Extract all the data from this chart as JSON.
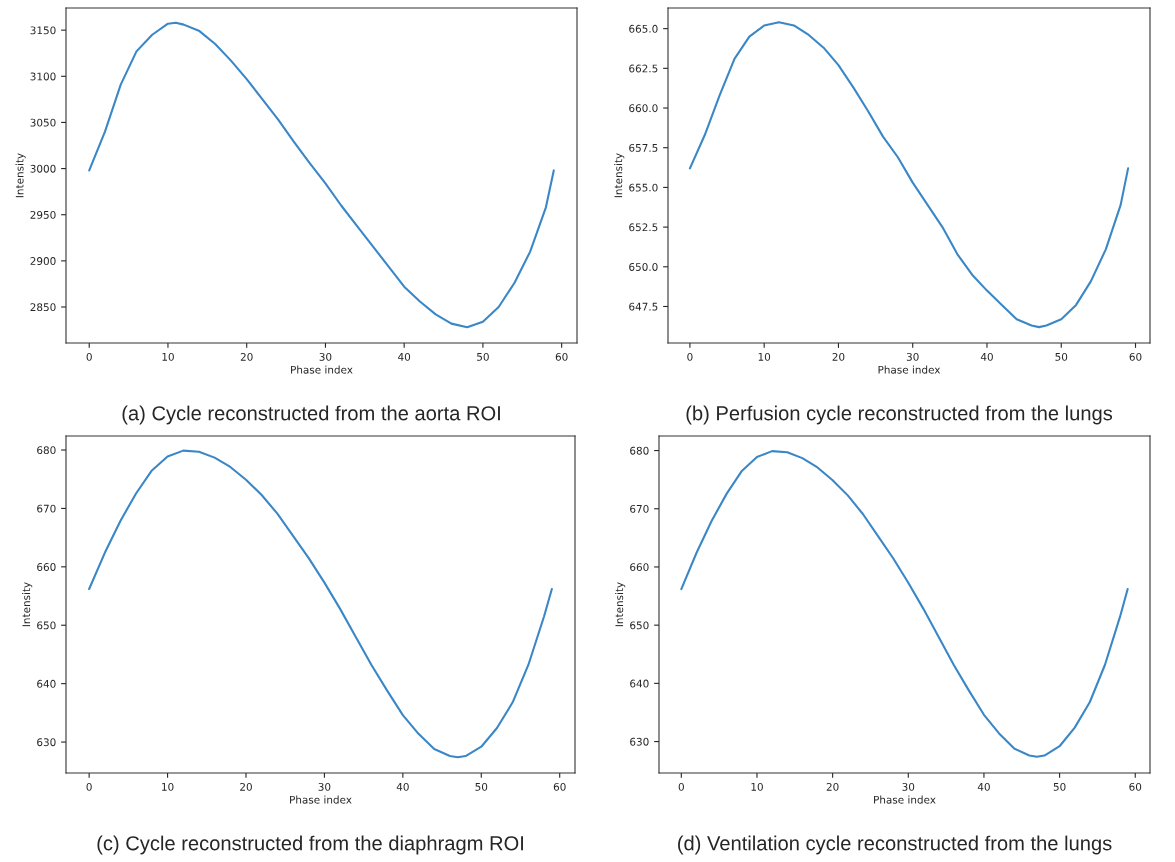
{
  "chart_data": [
    {
      "type": "line",
      "title": "(a) Cycle reconstructed from the aorta ROI",
      "xlabel": "Phase index",
      "ylabel": "Intensity",
      "xlim": [
        -2.95,
        61.95
      ],
      "ylim": [
        2811,
        3174
      ],
      "xticks": [
        0,
        10,
        20,
        30,
        40,
        50,
        60
      ],
      "yticks": [
        2850,
        2900,
        2950,
        3000,
        3050,
        3100,
        3150
      ],
      "grid": false,
      "legend": false,
      "series": [
        {
          "color": "#3a87c7",
          "x": [
            0,
            2,
            4,
            6,
            8,
            10,
            11,
            12,
            14,
            16,
            18,
            20,
            22,
            24,
            26,
            28,
            30,
            32,
            34,
            36,
            38,
            40,
            42,
            44,
            46,
            48,
            50,
            52,
            54,
            56,
            58,
            59
          ],
          "values": [
            2998,
            3040,
            3091,
            3127,
            3145,
            3157,
            3158,
            3156,
            3149,
            3135,
            3117,
            3097,
            3075,
            3053,
            3029,
            3006,
            2984,
            2960,
            2938,
            2916,
            2894,
            2872,
            2856,
            2842,
            2832,
            2828,
            2834,
            2850,
            2876,
            2910,
            2958,
            2998
          ]
        }
      ]
    },
    {
      "type": "line",
      "title": "(b) Perfusion cycle reconstructed from the lungs",
      "xlabel": "Phase index",
      "ylabel": "Intensity",
      "xlim": [
        -2.95,
        61.95
      ],
      "ylim": [
        645.2,
        666.3
      ],
      "xticks": [
        0,
        10,
        20,
        30,
        40,
        50,
        60
      ],
      "yticks": [
        {
          "value": 647.5,
          "label": "647.5"
        },
        {
          "value": 650,
          "label": "650.0"
        },
        {
          "value": 652.5,
          "label": "652.5"
        },
        {
          "value": 655,
          "label": "655.0"
        },
        {
          "value": 657.5,
          "label": "657.5"
        },
        {
          "value": 660,
          "label": "660.0"
        },
        {
          "value": 662.5,
          "label": "662.5"
        },
        {
          "value": 665,
          "label": "665.0"
        }
      ],
      "grid": false,
      "legend": false,
      "series": [
        {
          "color": "#3a87c7",
          "x": [
            0,
            2,
            4,
            6,
            8,
            10,
            12,
            14,
            16,
            18,
            20,
            22,
            24,
            26,
            28,
            30,
            32,
            34,
            36,
            38,
            40,
            42,
            44,
            46,
            47,
            48,
            50,
            52,
            54,
            56,
            58,
            59
          ],
          "values": [
            656.2,
            658.3,
            660.8,
            663.1,
            664.5,
            665.2,
            665.4,
            665.2,
            664.6,
            663.8,
            662.7,
            661.3,
            659.8,
            658.2,
            656.9,
            655.3,
            653.9,
            652.5,
            650.8,
            649.5,
            648.5,
            647.6,
            646.7,
            646.3,
            646.2,
            646.3,
            646.7,
            647.6,
            649.1,
            651.1,
            653.9,
            656.2
          ]
        }
      ]
    },
    {
      "type": "line",
      "title": "(c) Cycle reconstructed from the diaphragm ROI",
      "xlabel": "Phase index",
      "ylabel": "Intensity",
      "xlim": [
        -2.95,
        61.95
      ],
      "ylim": [
        624.7,
        682.4
      ],
      "xticks": [
        0,
        10,
        20,
        30,
        40,
        50,
        60
      ],
      "yticks": [
        630,
        640,
        650,
        660,
        670,
        680
      ],
      "grid": false,
      "legend": false,
      "series": [
        {
          "color": "#3a87c7",
          "x": [
            0,
            2,
            4,
            6,
            8,
            10,
            12,
            14,
            16,
            18,
            20,
            22,
            24,
            26,
            28,
            30,
            32,
            34,
            36,
            38,
            40,
            42,
            44,
            46,
            47,
            48,
            50,
            52,
            54,
            56,
            58,
            59
          ],
          "values": [
            656.2,
            662.4,
            667.9,
            672.6,
            676.5,
            678.9,
            679.9,
            679.7,
            678.7,
            677.1,
            674.9,
            672.3,
            669.1,
            665.3,
            661.5,
            657.3,
            652.8,
            648.0,
            643.2,
            638.8,
            634.6,
            631.4,
            628.8,
            627.6,
            627.4,
            627.6,
            629.2,
            632.4,
            636.8,
            643.2,
            651.5,
            656.2
          ]
        }
      ]
    },
    {
      "type": "line",
      "title": "(d) Ventilation cycle reconstructed from the lungs",
      "xlabel": "Phase index",
      "ylabel": "Intensity",
      "xlim": [
        -2.95,
        61.95
      ],
      "ylim": [
        624.6,
        682.5
      ],
      "xticks": [
        0,
        10,
        20,
        30,
        40,
        50,
        60
      ],
      "yticks": [
        630,
        640,
        650,
        660,
        670,
        680
      ],
      "grid": false,
      "legend": false,
      "series": [
        {
          "color": "#3a87c7",
          "x": [
            0,
            2,
            4,
            6,
            8,
            10,
            12,
            14,
            16,
            18,
            20,
            22,
            24,
            26,
            28,
            30,
            32,
            34,
            36,
            38,
            40,
            42,
            44,
            46,
            47,
            48,
            50,
            52,
            54,
            56,
            58,
            59
          ],
          "values": [
            656.2,
            662.4,
            667.9,
            672.6,
            676.5,
            678.9,
            679.9,
            679.7,
            678.7,
            677.1,
            674.9,
            672.3,
            669.1,
            665.3,
            661.5,
            657.3,
            652.8,
            648.0,
            643.2,
            638.8,
            634.6,
            631.4,
            628.8,
            627.6,
            627.4,
            627.6,
            629.2,
            632.4,
            636.8,
            643.2,
            651.5,
            656.2
          ]
        }
      ]
    }
  ]
}
